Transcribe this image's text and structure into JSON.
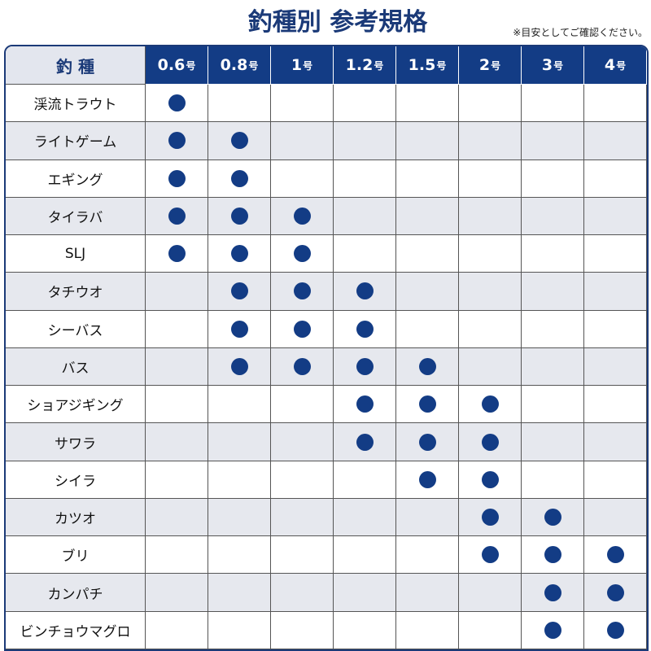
{
  "header": {
    "title": "釣種別 参考規格",
    "note": "※目安としてご確認ください。"
  },
  "table": {
    "corner": "釣 種",
    "columns": [
      {
        "size": "0.6",
        "unit": "号"
      },
      {
        "size": "0.8",
        "unit": "号"
      },
      {
        "size": "1",
        "unit": "号"
      },
      {
        "size": "1.2",
        "unit": "号"
      },
      {
        "size": "1.5",
        "unit": "号"
      },
      {
        "size": "2",
        "unit": "号"
      },
      {
        "size": "3",
        "unit": "号"
      },
      {
        "size": "4",
        "unit": "号"
      }
    ],
    "rows": [
      {
        "name": "渓流トラウト",
        "cells": [
          true,
          false,
          false,
          false,
          false,
          false,
          false,
          false
        ]
      },
      {
        "name": "ライトゲーム",
        "cells": [
          true,
          true,
          false,
          false,
          false,
          false,
          false,
          false
        ]
      },
      {
        "name": "エギング",
        "cells": [
          true,
          true,
          false,
          false,
          false,
          false,
          false,
          false
        ]
      },
      {
        "name": "タイラバ",
        "cells": [
          true,
          true,
          true,
          false,
          false,
          false,
          false,
          false
        ]
      },
      {
        "name": "SLJ",
        "cells": [
          true,
          true,
          true,
          false,
          false,
          false,
          false,
          false
        ]
      },
      {
        "name": "タチウオ",
        "cells": [
          false,
          true,
          true,
          true,
          false,
          false,
          false,
          false
        ]
      },
      {
        "name": "シーバス",
        "cells": [
          false,
          true,
          true,
          true,
          false,
          false,
          false,
          false
        ]
      },
      {
        "name": "バス",
        "cells": [
          false,
          true,
          true,
          true,
          true,
          false,
          false,
          false
        ]
      },
      {
        "name": "ショアジギング",
        "cells": [
          false,
          false,
          false,
          true,
          true,
          true,
          false,
          false
        ]
      },
      {
        "name": "サワラ",
        "cells": [
          false,
          false,
          false,
          true,
          true,
          true,
          false,
          false
        ]
      },
      {
        "name": "シイラ",
        "cells": [
          false,
          false,
          false,
          false,
          true,
          true,
          false,
          false
        ]
      },
      {
        "name": "カツオ",
        "cells": [
          false,
          false,
          false,
          false,
          false,
          true,
          true,
          false
        ]
      },
      {
        "name": "ブリ",
        "cells": [
          false,
          false,
          false,
          false,
          false,
          true,
          true,
          true
        ]
      },
      {
        "name": "カンパチ",
        "cells": [
          false,
          false,
          false,
          false,
          false,
          false,
          true,
          true
        ]
      },
      {
        "name": "ビンチョウマグロ",
        "cells": [
          false,
          false,
          false,
          false,
          false,
          false,
          true,
          true
        ]
      }
    ]
  }
}
